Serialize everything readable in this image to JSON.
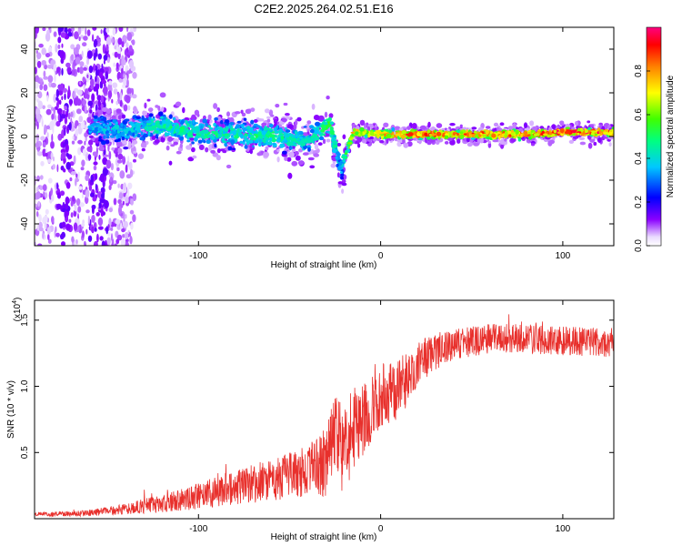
{
  "title": "C2E2.2025.264.02.51.E16",
  "chart_data": [
    {
      "type": "heatmap",
      "title": "C2E2.2025.264.02.51.E16",
      "xlabel": "Height of straight line (km)",
      "ylabel": "Frequency (Hz)",
      "xlim": [
        -190,
        128
      ],
      "ylim": [
        -50,
        50
      ],
      "xticks": [
        -100,
        0,
        100
      ],
      "xtick_labels": [
        "-100",
        "0",
        "100"
      ],
      "yticks": [
        -40,
        -20,
        0,
        20,
        40
      ],
      "ytick_labels": [
        "-40",
        "-20",
        "0",
        "20",
        "40"
      ],
      "colorbar": {
        "label": "Normalized spectral amplitude",
        "range": [
          0,
          1
        ],
        "ticks": [
          0.0,
          0.2,
          0.4,
          0.6,
          0.8
        ],
        "tick_labels": [
          "0.0",
          "0.2",
          "0.4",
          "0.6",
          "0.8"
        ]
      },
      "ridge": [
        {
          "x": -160,
          "f": 4,
          "amp": 0.38
        },
        {
          "x": -140,
          "f": 3,
          "amp": 0.42
        },
        {
          "x": -120,
          "f": 5,
          "amp": 0.48
        },
        {
          "x": -100,
          "f": 2,
          "amp": 0.5
        },
        {
          "x": -80,
          "f": 1,
          "amp": 0.48
        },
        {
          "x": -60,
          "f": 0,
          "amp": 0.52
        },
        {
          "x": -40,
          "f": -2,
          "amp": 0.45
        },
        {
          "x": -28,
          "f": 6,
          "amp": 0.55
        },
        {
          "x": -22,
          "f": -15,
          "amp": 0.4
        },
        {
          "x": -15,
          "f": 2,
          "amp": 0.8
        },
        {
          "x": 0,
          "f": 1,
          "amp": 0.85
        },
        {
          "x": 20,
          "f": 1,
          "amp": 0.92
        },
        {
          "x": 40,
          "f": 1,
          "amp": 0.9
        },
        {
          "x": 60,
          "f": 1,
          "amp": 0.93
        },
        {
          "x": 80,
          "f": 1,
          "amp": 0.9
        },
        {
          "x": 100,
          "f": 2,
          "amp": 0.95
        },
        {
          "x": 120,
          "f": 2,
          "amp": 0.95
        }
      ]
    },
    {
      "type": "line",
      "xlabel": "Height of straight line (km)",
      "ylabel": "SNR (10 * v/v)",
      "yscale_label": "(x10",
      "yscale_exponent": "4",
      "yscale_suffix": ")",
      "xlim": [
        -190,
        128
      ],
      "ylim": [
        0,
        16500
      ],
      "xticks": [
        -100,
        0,
        100
      ],
      "xtick_labels": [
        "-100",
        "0",
        "100"
      ],
      "yticks": [
        5000,
        10000,
        15000
      ],
      "ytick_labels": [
        "0.5",
        "1.0",
        "1.5"
      ],
      "color": "#e8302c",
      "envelope": {
        "x": [
          -190,
          -160,
          -140,
          -120,
          -100,
          -80,
          -60,
          -40,
          -30,
          -25,
          -20,
          -15,
          -10,
          -5,
          0,
          10,
          15,
          20,
          30,
          40,
          60,
          80,
          100,
          128
        ],
        "mean": [
          300,
          400,
          700,
          1100,
          1600,
          2200,
          2800,
          3400,
          4000,
          6000,
          4800,
          6500,
          7200,
          8000,
          9000,
          9600,
          10500,
          11500,
          12500,
          13000,
          13500,
          13500,
          13300,
          13200
        ],
        "spread": [
          150,
          250,
          400,
          700,
          1000,
          1300,
          1600,
          1900,
          2600,
          3200,
          3600,
          3000,
          2900,
          2600,
          2500,
          2200,
          2100,
          1700,
          1400,
          1200,
          1100,
          1100,
          1100,
          1100
        ]
      }
    }
  ]
}
